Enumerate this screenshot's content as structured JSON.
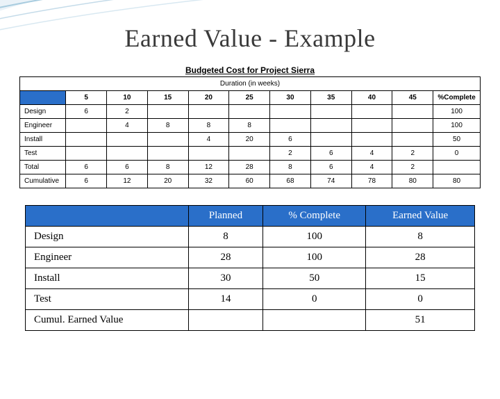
{
  "title": "Earned Value - Example",
  "table1": {
    "caption": "Budgeted Cost for Project Sierra",
    "duration_label": "Duration (in weeks)",
    "headers": [
      "5",
      "10",
      "15",
      "20",
      "25",
      "30",
      "35",
      "40",
      "45",
      "%Complete"
    ],
    "rows": [
      {
        "label": "Design",
        "cells": [
          "6",
          "2",
          "",
          "",
          "",
          "",
          "",
          "",
          "",
          "100"
        ]
      },
      {
        "label": "Engineer",
        "cells": [
          "",
          "4",
          "8",
          "8",
          "8",
          "",
          "",
          "",
          "",
          "100"
        ]
      },
      {
        "label": "Install",
        "cells": [
          "",
          "",
          "",
          "4",
          "20",
          "6",
          "",
          "",
          "",
          "50"
        ]
      },
      {
        "label": "Test",
        "cells": [
          "",
          "",
          "",
          "",
          "",
          "2",
          "6",
          "4",
          "2",
          "0"
        ]
      },
      {
        "label": "Total",
        "cells": [
          "6",
          "6",
          "8",
          "12",
          "28",
          "8",
          "6",
          "4",
          "2",
          ""
        ]
      },
      {
        "label": "Cumulative",
        "cells": [
          "6",
          "12",
          "20",
          "32",
          "60",
          "68",
          "74",
          "78",
          "80",
          "80"
        ]
      }
    ],
    "colors": {
      "header_bg": "#2a6fc9",
      "border": "#000000",
      "text": "#000000"
    }
  },
  "table2": {
    "headers": [
      "",
      "Planned",
      "% Complete",
      "Earned Value"
    ],
    "rows": [
      {
        "label": "Design",
        "cells": [
          "8",
          "100",
          "8"
        ]
      },
      {
        "label": "Engineer",
        "cells": [
          "28",
          "100",
          "28"
        ]
      },
      {
        "label": "Install",
        "cells": [
          "30",
          "50",
          "15"
        ]
      },
      {
        "label": "Test",
        "cells": [
          "14",
          "0",
          "0"
        ]
      },
      {
        "label": "Cumul. Earned Value",
        "cells": [
          "",
          "",
          "51"
        ]
      }
    ],
    "colors": {
      "header_bg": "#2a6fc9",
      "header_text": "#ffffff",
      "border": "#000000"
    }
  },
  "swoosh_colors": [
    "#d0e4f2",
    "#a8ccdf",
    "#7eb3cf"
  ]
}
